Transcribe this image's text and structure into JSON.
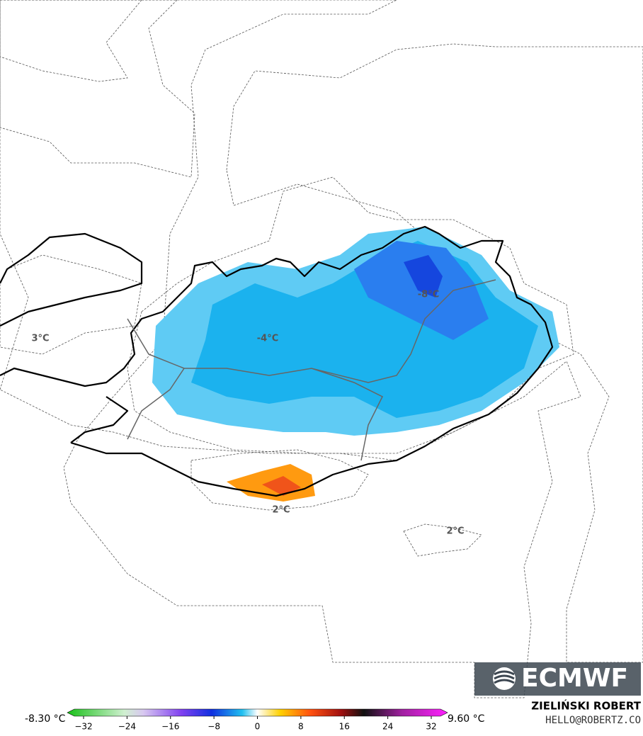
{
  "map": {
    "contour_labels": [
      "3°C",
      "-4°C",
      "-8°C",
      "2°C",
      "2°C"
    ]
  },
  "colorbar": {
    "min_label": "-8.30 °C",
    "max_label": "9.60 °C",
    "lim": [
      -35,
      35
    ],
    "ticks": [
      {
        "value": -32,
        "label": "−32"
      },
      {
        "value": -24,
        "label": "−24"
      },
      {
        "value": -16,
        "label": "−16"
      },
      {
        "value": -8,
        "label": "−8"
      },
      0,
      8,
      16,
      24,
      32
    ]
  },
  "logo": "ECMWF",
  "author": {
    "name": "ZIELIŃSKI ROBERT",
    "contact": "HELLO@ROBERTZ.CO"
  }
}
